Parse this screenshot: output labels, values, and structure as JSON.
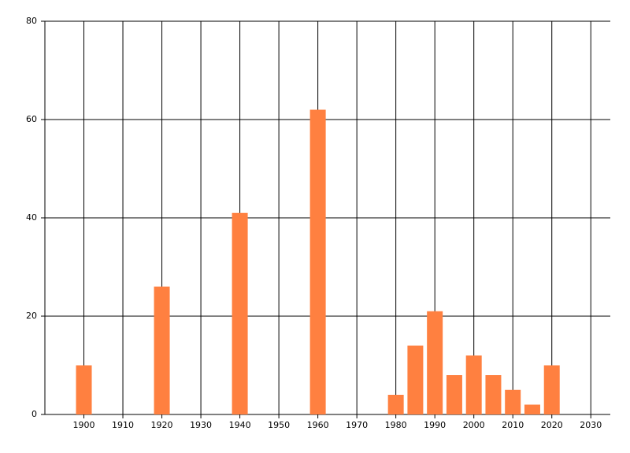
{
  "chart_data": {
    "type": "bar",
    "x": [
      1900,
      1920,
      1940,
      1960,
      1980,
      1985,
      1990,
      1995,
      2000,
      2005,
      2010,
      2015,
      2020
    ],
    "values": [
      10,
      26,
      41,
      62,
      4,
      14,
      21,
      8,
      12,
      8,
      5,
      2,
      10
    ],
    "color": "#ff8040",
    "xlim": [
      1890,
      2035
    ],
    "xticks": [
      1900,
      1910,
      1920,
      1930,
      1940,
      1950,
      1960,
      1970,
      1980,
      1990,
      2000,
      2010,
      2020,
      2030
    ],
    "ylim": [
      0,
      80
    ],
    "yticks": [
      0,
      20,
      40,
      60,
      80
    ],
    "grid": true
  }
}
